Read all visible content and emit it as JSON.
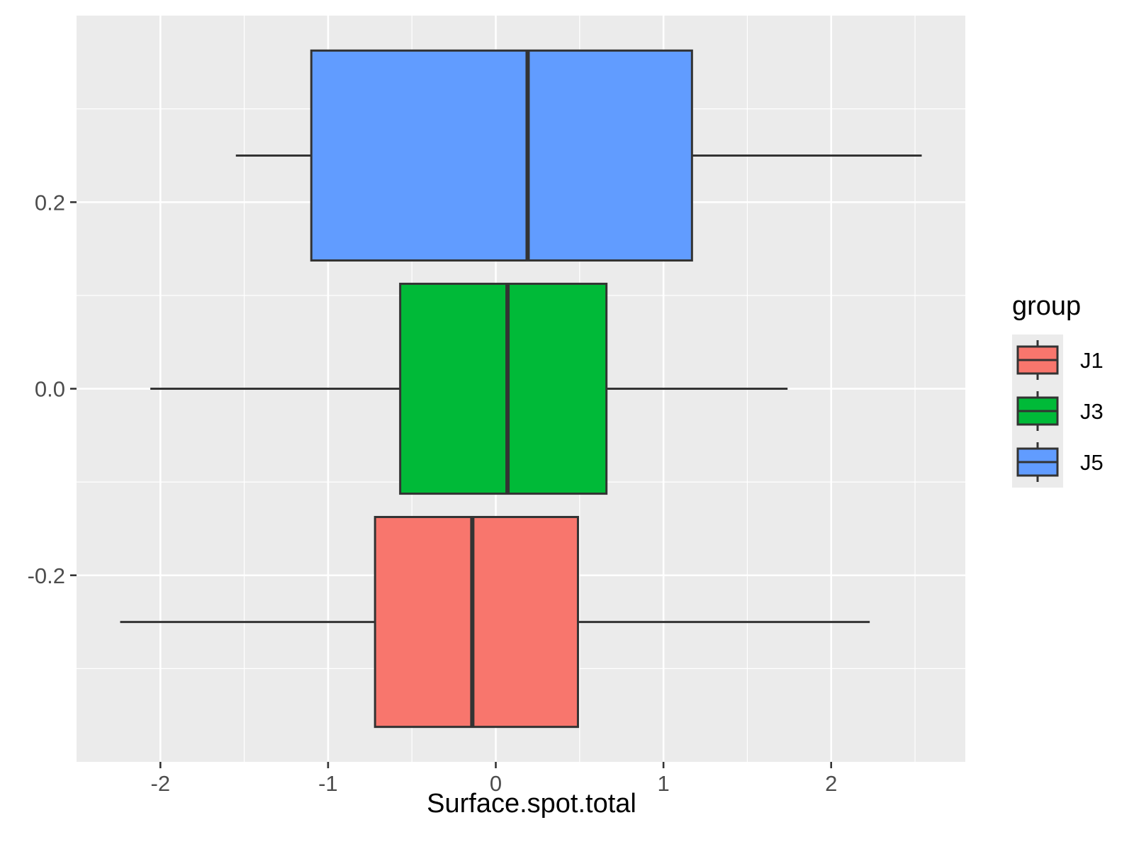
{
  "chart_data": {
    "type": "boxplot",
    "orientation": "horizontal",
    "xlabel": "Surface.spot.total",
    "ylabel": "",
    "xlim": [
      -2.5,
      2.8
    ],
    "ylim": [
      -0.4,
      0.4
    ],
    "x_ticks": [
      -2,
      -1,
      0,
      1,
      2
    ],
    "x_tick_labels": [
      "-2",
      "-1",
      "0",
      "1",
      "2"
    ],
    "y_ticks": [
      -0.2,
      0.0,
      0.2
    ],
    "y_tick_labels": [
      "-0.2",
      "0.0",
      "0.2"
    ],
    "grid": true,
    "legend": {
      "title": "group",
      "placement": "right",
      "entries": [
        "J1",
        "J3",
        "J5"
      ]
    },
    "series": [
      {
        "name": "J1",
        "color": "#F8766D",
        "y_low": -0.3625,
        "y_high": -0.1375,
        "whisker_low": -2.24,
        "q1": -0.72,
        "median": -0.14,
        "q3": 0.49,
        "whisker_high": 2.23
      },
      {
        "name": "J3",
        "color": "#00BA38",
        "y_low": -0.1125,
        "y_high": 0.1125,
        "whisker_low": -2.06,
        "q1": -0.57,
        "median": 0.07,
        "q3": 0.66,
        "whisker_high": 1.74
      },
      {
        "name": "J5",
        "color": "#619CFF",
        "y_low": 0.1375,
        "y_high": 0.3625,
        "whisker_low": -1.55,
        "q1": -1.1,
        "median": 0.19,
        "q3": 1.17,
        "whisker_high": 2.54
      }
    ]
  }
}
